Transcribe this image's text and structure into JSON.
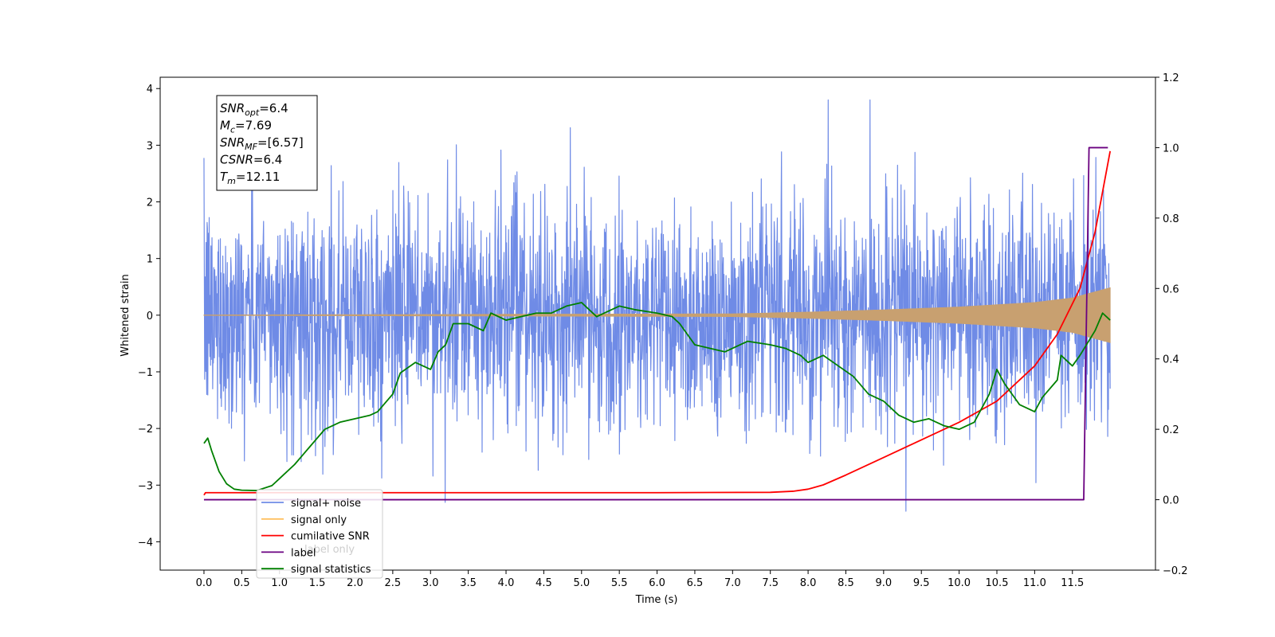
{
  "chart_data": {
    "type": "line",
    "xlabel": "Time (s)",
    "ylabel": "Whitened strain",
    "x_ticks": [
      "0.0",
      "0.5",
      "1.0",
      "1.5",
      "2.0",
      "2.5",
      "3.0",
      "3.5",
      "4.0",
      "4.5",
      "5.0",
      "5.5",
      "6.0",
      "6.5",
      "7.0",
      "7.5",
      "8.0",
      "8.5",
      "9.0",
      "9.5",
      "10.0",
      "10.5",
      "11.0",
      "11.5"
    ],
    "y_left_ticks": [
      "−4",
      "−3",
      "−2",
      "−1",
      "0",
      "1",
      "2",
      "3",
      "4"
    ],
    "y_right_ticks": [
      "−0.2",
      "0.0",
      "0.2",
      "0.4",
      "0.6",
      "0.8",
      "1.0",
      "1.2"
    ],
    "xlim": [
      -0.58,
      12.6
    ],
    "ylim_left": [
      -4.5,
      4.2
    ],
    "ylim_right": [
      -0.2,
      1.2
    ],
    "t_end": 12.0,
    "annotation": {
      "lines": [
        {
          "base": "SNR",
          "sub": "opt",
          "rest": "=6.4"
        },
        {
          "base": "M",
          "sub": "c",
          "rest": "=7.69"
        },
        {
          "base": "SNR",
          "sub": "MF",
          "rest": "=[6.57]"
        },
        {
          "base": "CSNR",
          "sub": "",
          "rest": "=6.4"
        },
        {
          "base": "T",
          "sub": "m",
          "rest": "=12.11"
        }
      ]
    },
    "legend": [
      {
        "label": "signal+ noise",
        "color": "#6f8be6"
      },
      {
        "label": "signal only",
        "color": "#ffc060"
      },
      {
        "label": "cumilative SNR",
        "color": "#ff0000"
      },
      {
        "label": "label",
        "color": "#6a0080"
      },
      {
        "label": "signal statistics",
        "color": "#008000"
      }
    ],
    "hidden_legend_text": {
      "label": "label only"
    },
    "series": [
      {
        "name": "signal+ noise",
        "axis": "left",
        "color": "#6f8be6",
        "envelope": {
          "typical_max": 2.2,
          "typical_min": -2.2
        }
      },
      {
        "name": "signal only",
        "axis": "left",
        "color": "#c8a070",
        "amplitude_points": [
          [
            0.0,
            0.0
          ],
          [
            7.0,
            0.02
          ],
          [
            8.0,
            0.05
          ],
          [
            9.0,
            0.09
          ],
          [
            10.0,
            0.14
          ],
          [
            11.0,
            0.22
          ],
          [
            11.5,
            0.3
          ],
          [
            12.0,
            0.48
          ]
        ]
      },
      {
        "name": "cumilative SNR",
        "axis": "right",
        "color": "#ff0000",
        "points": [
          [
            0.0,
            0.013
          ],
          [
            0.02,
            0.02
          ],
          [
            3.0,
            0.02
          ],
          [
            6.0,
            0.02
          ],
          [
            7.5,
            0.021
          ],
          [
            7.8,
            0.024
          ],
          [
            8.0,
            0.03
          ],
          [
            8.2,
            0.042
          ],
          [
            8.5,
            0.07
          ],
          [
            9.0,
            0.12
          ],
          [
            9.5,
            0.17
          ],
          [
            10.0,
            0.22
          ],
          [
            10.5,
            0.28
          ],
          [
            11.0,
            0.38
          ],
          [
            11.3,
            0.47
          ],
          [
            11.6,
            0.6
          ],
          [
            11.8,
            0.76
          ],
          [
            12.0,
            0.99
          ]
        ]
      },
      {
        "name": "label",
        "axis": "right",
        "color": "#6a0080",
        "points": [
          [
            0.0,
            0.0
          ],
          [
            11.65,
            0.0
          ],
          [
            11.72,
            1.0
          ],
          [
            11.97,
            1.0
          ]
        ]
      },
      {
        "name": "signal statistics",
        "axis": "right",
        "color": "#008000",
        "points": [
          [
            0.0,
            0.16
          ],
          [
            0.05,
            0.175
          ],
          [
            0.1,
            0.14
          ],
          [
            0.2,
            0.08
          ],
          [
            0.3,
            0.045
          ],
          [
            0.4,
            0.03
          ],
          [
            0.5,
            0.027
          ],
          [
            0.7,
            0.026
          ],
          [
            0.9,
            0.04
          ],
          [
            1.0,
            0.06
          ],
          [
            1.2,
            0.1
          ],
          [
            1.4,
            0.15
          ],
          [
            1.6,
            0.2
          ],
          [
            1.8,
            0.22
          ],
          [
            2.0,
            0.23
          ],
          [
            2.2,
            0.24
          ],
          [
            2.3,
            0.25
          ],
          [
            2.5,
            0.3
          ],
          [
            2.6,
            0.36
          ],
          [
            2.8,
            0.39
          ],
          [
            3.0,
            0.37
          ],
          [
            3.1,
            0.42
          ],
          [
            3.2,
            0.44
          ],
          [
            3.3,
            0.5
          ],
          [
            3.5,
            0.5
          ],
          [
            3.7,
            0.48
          ],
          [
            3.8,
            0.53
          ],
          [
            4.0,
            0.51
          ],
          [
            4.2,
            0.52
          ],
          [
            4.4,
            0.53
          ],
          [
            4.6,
            0.53
          ],
          [
            4.8,
            0.55
          ],
          [
            5.0,
            0.56
          ],
          [
            5.2,
            0.52
          ],
          [
            5.4,
            0.54
          ],
          [
            5.5,
            0.55
          ],
          [
            5.7,
            0.54
          ],
          [
            6.0,
            0.53
          ],
          [
            6.2,
            0.52
          ],
          [
            6.3,
            0.5
          ],
          [
            6.5,
            0.44
          ],
          [
            6.7,
            0.43
          ],
          [
            6.9,
            0.42
          ],
          [
            7.2,
            0.45
          ],
          [
            7.5,
            0.44
          ],
          [
            7.7,
            0.43
          ],
          [
            7.9,
            0.41
          ],
          [
            8.0,
            0.39
          ],
          [
            8.2,
            0.41
          ],
          [
            8.4,
            0.38
          ],
          [
            8.6,
            0.35
          ],
          [
            8.8,
            0.3
          ],
          [
            9.0,
            0.28
          ],
          [
            9.2,
            0.24
          ],
          [
            9.4,
            0.22
          ],
          [
            9.6,
            0.23
          ],
          [
            9.8,
            0.21
          ],
          [
            10.0,
            0.2
          ],
          [
            10.2,
            0.22
          ],
          [
            10.4,
            0.3
          ],
          [
            10.5,
            0.37
          ],
          [
            10.6,
            0.33
          ],
          [
            10.8,
            0.27
          ],
          [
            11.0,
            0.25
          ],
          [
            11.1,
            0.29
          ],
          [
            11.3,
            0.34
          ],
          [
            11.35,
            0.41
          ],
          [
            11.5,
            0.38
          ],
          [
            11.6,
            0.41
          ],
          [
            11.8,
            0.48
          ],
          [
            11.9,
            0.53
          ],
          [
            12.0,
            0.51
          ]
        ]
      }
    ],
    "grid": false
  }
}
